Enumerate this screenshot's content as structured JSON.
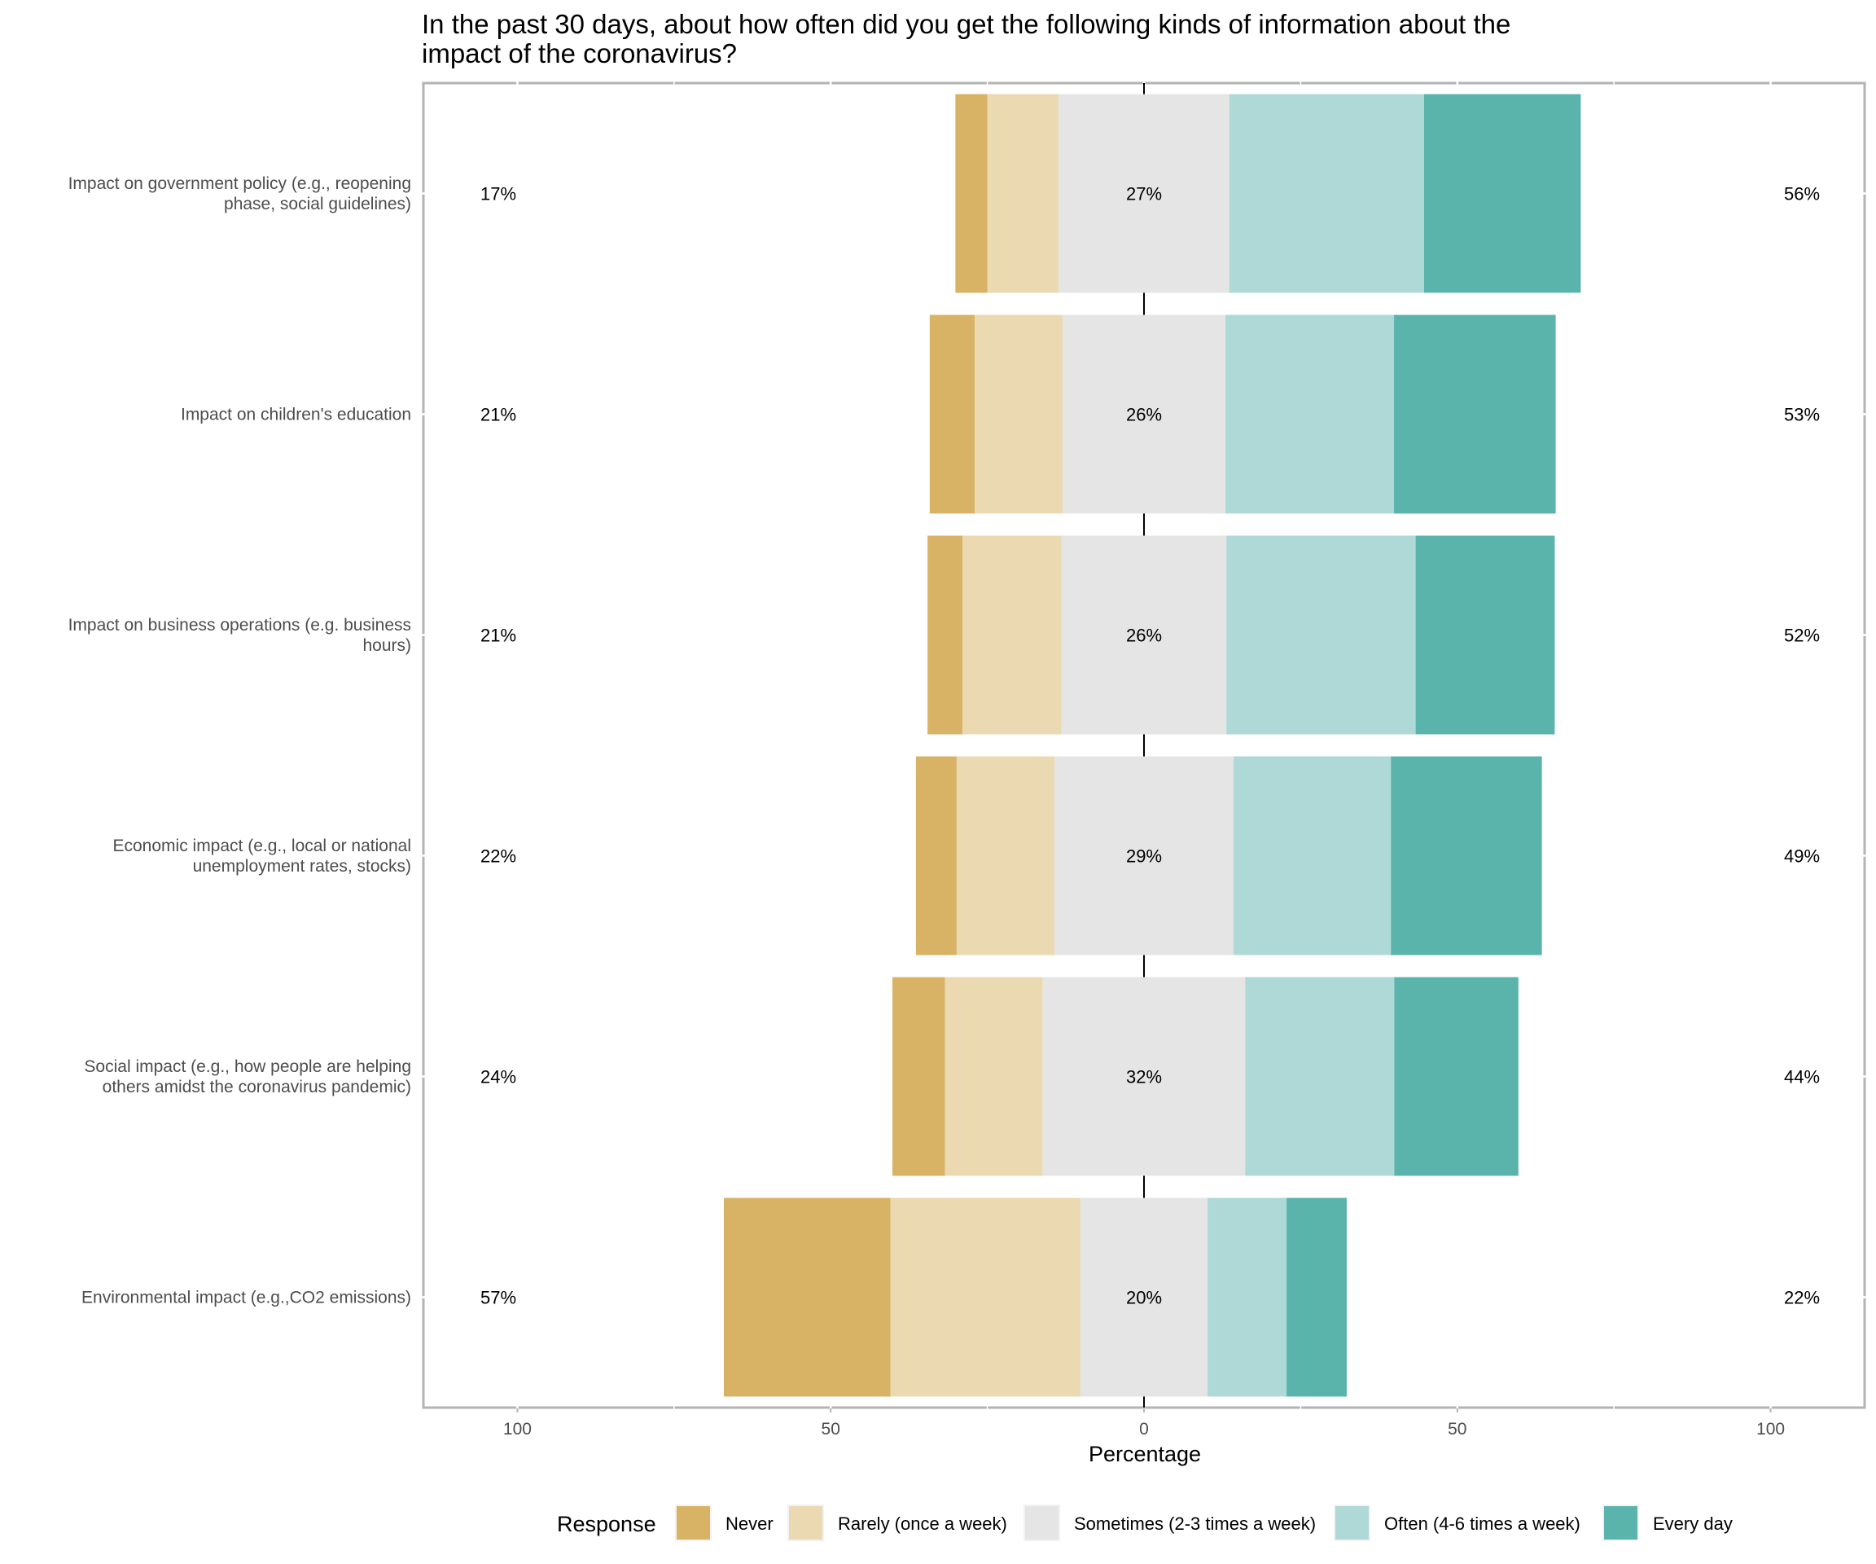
{
  "chart_data": {
    "type": "bar",
    "subtype": "diverging-stacked-horizontal",
    "title_lines": [
      "In the past 30 days, about how often did you get the following kinds of information about the",
      "impact of the coronavirus?"
    ],
    "xlabel": "Percentage",
    "ylabel": "",
    "xlim": [
      -115,
      115
    ],
    "x_ticks": [
      -100,
      -50,
      0,
      50,
      100
    ],
    "x_tick_labels": [
      "100",
      "50",
      "0",
      "50",
      "100"
    ],
    "grid": false,
    "center_line": true,
    "legend": {
      "title": "Response",
      "position": "bottom"
    },
    "series": [
      {
        "name": "Never",
        "color": "#D8B365",
        "values": [
          5.1,
          7.2,
          5.6,
          6.5,
          8.4,
          26.6
        ]
      },
      {
        "name": "Rarely (once a week)",
        "color": "#EBD9B2",
        "values": [
          11.4,
          14.0,
          15.8,
          15.6,
          15.6,
          30.3
        ]
      },
      {
        "name": "Sometimes (2-3 times a week)",
        "color": "#E5E5E5",
        "values": [
          27.2,
          26.0,
          26.3,
          28.6,
          32.3,
          20.3
        ]
      },
      {
        "name": "Often (4-6 times a week)",
        "color": "#AED9D6",
        "values": [
          31.1,
          26.9,
          30.2,
          25.1,
          23.8,
          12.6
        ]
      },
      {
        "name": "Every day",
        "color": "#5AB4AC",
        "values": [
          25.0,
          25.8,
          22.2,
          24.1,
          19.8,
          9.6
        ]
      }
    ],
    "categories": [
      {
        "lines": [
          "Impact on government policy (e.g., reopening",
          "phase, social guidelines)"
        ],
        "left_label": "17%",
        "center_label": "27%",
        "right_label": "56%"
      },
      {
        "lines": [
          "Impact on children's education"
        ],
        "left_label": "21%",
        "center_label": "26%",
        "right_label": "53%"
      },
      {
        "lines": [
          "Impact on business operations (e.g. business",
          "hours)"
        ],
        "left_label": "21%",
        "center_label": "26%",
        "right_label": "52%"
      },
      {
        "lines": [
          "Economic impact (e.g., local or national",
          "unemployment rates, stocks)"
        ],
        "left_label": "22%",
        "center_label": "29%",
        "right_label": "49%"
      },
      {
        "lines": [
          "Social impact (e.g., how people are helping",
          "others amidst the coronavirus pandemic)"
        ],
        "left_label": "24%",
        "center_label": "32%",
        "right_label": "44%"
      },
      {
        "lines": [
          "Environmental impact (e.g.,CO2 emissions)"
        ],
        "left_label": "57%",
        "center_label": "20%",
        "right_label": "22%"
      }
    ]
  }
}
